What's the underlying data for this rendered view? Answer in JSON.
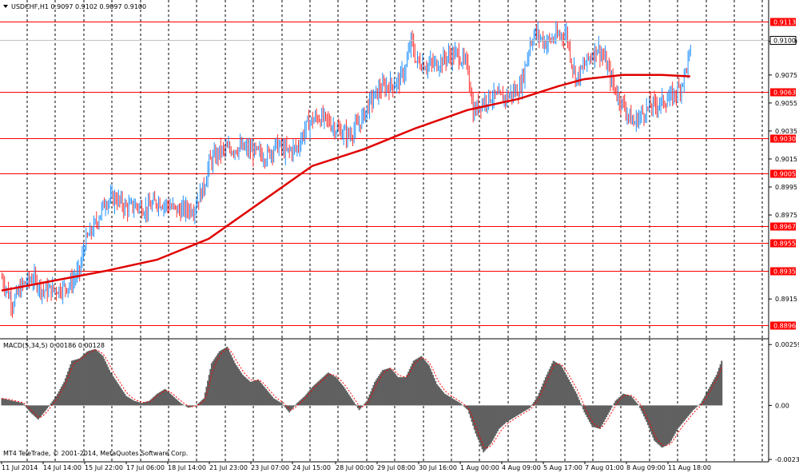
{
  "header": {
    "symbol_line": "USDCHF,H1  0.9097 0.9102 0.9097 0.9100",
    "macd_line": "MACD(5,34,5) 0.00186 0.00128",
    "copyright": "MT4 TeleTrade, © 2001-2014, MetaQuotes Software Corp."
  },
  "chart_data": [
    {
      "type": "candlestick",
      "title": "USDCHF,H1",
      "ohlc_readout": {
        "open": 0.9097,
        "high": 0.9102,
        "low": 0.9097,
        "close": 0.91
      },
      "current_price": 0.91,
      "ylim": [
        0.889,
        0.912
      ],
      "y_ticks": [
        0.9099,
        0.9075,
        0.9055,
        0.9035,
        0.9015,
        0.8995,
        0.8975,
        0.8915
      ],
      "y_tick_labels": [
        "0.9099",
        "0.9075",
        "0.9055",
        "0.9035",
        "0.9015",
        "0.8995",
        "0.8975",
        "0.8915"
      ],
      "levels": [
        0.9113,
        0.9063,
        0.903,
        0.9005,
        0.8967,
        0.8955,
        0.8935,
        0.8896
      ],
      "level_labels": [
        "0.9113",
        "0.9063",
        "0.9030",
        "0.9005",
        "0.8967",
        "0.8955",
        "0.8935",
        "0.8896"
      ],
      "x_tick_labels": [
        "11 Jul 2014",
        "14 Jul 14:00",
        "15 Jul 22:00",
        "17 Jul 06:00",
        "18 Jul 14:00",
        "21 Jul 23:00",
        "23 Jul 07:00",
        "24 Jul 15:00",
        "28 Jul 00:00",
        "29 Jul 08:00",
        "30 Jul 16:00",
        "1 Aug 00:00",
        "4 Aug 09:00",
        "5 Aug 17:00",
        "7 Aug 01:00",
        "8 Aug 09:00",
        "11 Aug 18:00"
      ],
      "close_path": [
        [
          0,
          0.893
        ],
        [
          8,
          0.8912
        ],
        [
          16,
          0.8925
        ],
        [
          24,
          0.893
        ],
        [
          32,
          0.8921
        ],
        [
          44,
          0.8922
        ],
        [
          52,
          0.8925
        ],
        [
          60,
          0.8935
        ],
        [
          64,
          0.8955
        ],
        [
          72,
          0.8968
        ],
        [
          80,
          0.8985
        ],
        [
          88,
          0.8987
        ],
        [
          96,
          0.898
        ],
        [
          104,
          0.8982
        ],
        [
          112,
          0.8979
        ],
        [
          120,
          0.8985
        ],
        [
          128,
          0.8982
        ],
        [
          136,
          0.8978
        ],
        [
          148,
          0.898
        ],
        [
          156,
          0.8995
        ],
        [
          160,
          0.9012
        ],
        [
          168,
          0.902
        ],
        [
          176,
          0.9022
        ],
        [
          184,
          0.9023
        ],
        [
          192,
          0.9021
        ],
        [
          204,
          0.9017
        ],
        [
          212,
          0.9025
        ],
        [
          220,
          0.902
        ],
        [
          228,
          0.9023
        ],
        [
          236,
          0.904
        ],
        [
          244,
          0.9045
        ],
        [
          252,
          0.9042
        ],
        [
          260,
          0.9035
        ],
        [
          268,
          0.9032
        ],
        [
          276,
          0.904
        ],
        [
          284,
          0.9055
        ],
        [
          292,
          0.9065
        ],
        [
          300,
          0.9068
        ],
        [
          306,
          0.907
        ],
        [
          312,
          0.908
        ],
        [
          316,
          0.91
        ],
        [
          320,
          0.9085
        ],
        [
          328,
          0.9082
        ],
        [
          336,
          0.9083
        ],
        [
          344,
          0.9088
        ],
        [
          352,
          0.909
        ],
        [
          360,
          0.908
        ],
        [
          364,
          0.9048
        ],
        [
          370,
          0.9055
        ],
        [
          378,
          0.906
        ],
        [
          386,
          0.9058
        ],
        [
          394,
          0.9062
        ],
        [
          400,
          0.9065
        ],
        [
          404,
          0.908
        ],
        [
          408,
          0.9098
        ],
        [
          412,
          0.9105
        ],
        [
          420,
          0.9098
        ],
        [
          428,
          0.9102
        ],
        [
          436,
          0.9105
        ],
        [
          440,
          0.9085
        ],
        [
          444,
          0.9072
        ],
        [
          452,
          0.9085
        ],
        [
          460,
          0.9095
        ],
        [
          466,
          0.9085
        ],
        [
          472,
          0.9068
        ],
        [
          476,
          0.906
        ],
        [
          482,
          0.905
        ],
        [
          488,
          0.904
        ],
        [
          492,
          0.9045
        ],
        [
          500,
          0.9052
        ],
        [
          508,
          0.9055
        ],
        [
          516,
          0.9058
        ],
        [
          524,
          0.9066
        ],
        [
          528,
          0.9078
        ],
        [
          532,
          0.9092
        ]
      ],
      "moving_average": [
        [
          0,
          0.8921
        ],
        [
          40,
          0.8928
        ],
        [
          80,
          0.8935
        ],
        [
          120,
          0.8943
        ],
        [
          160,
          0.8958
        ],
        [
          200,
          0.8984
        ],
        [
          240,
          0.901
        ],
        [
          280,
          0.9022
        ],
        [
          320,
          0.9037
        ],
        [
          360,
          0.905
        ],
        [
          400,
          0.9058
        ],
        [
          430,
          0.9067
        ],
        [
          450,
          0.9072
        ],
        [
          480,
          0.9075
        ],
        [
          510,
          0.9075
        ],
        [
          532,
          0.9074
        ]
      ]
    },
    {
      "type": "bar",
      "title": "MACD(5,34,5)",
      "values_readout": [
        0.00186,
        0.00128
      ],
      "ylim": [
        -0.0024,
        0.0027
      ],
      "y_tick_labels": [
        "0.00259",
        "0.00",
        "-0.0023"
      ],
      "main": [
        [
          0,
          0.0003
        ],
        [
          8,
          0.0002
        ],
        [
          16,
          0.0001
        ],
        [
          22,
          -0.0003
        ],
        [
          28,
          -0.0006
        ],
        [
          34,
          -0.0002
        ],
        [
          42,
          0.0004
        ],
        [
          48,
          0.001
        ],
        [
          54,
          0.0019
        ],
        [
          60,
          0.002
        ],
        [
          66,
          0.0023
        ],
        [
          72,
          0.0024
        ],
        [
          78,
          0.0021
        ],
        [
          84,
          0.0014
        ],
        [
          90,
          0.0009
        ],
        [
          96,
          0.0004
        ],
        [
          102,
          0.0002
        ],
        [
          108,
          0.0001
        ],
        [
          114,
          0.0002
        ],
        [
          120,
          0.0005
        ],
        [
          126,
          0.0007
        ],
        [
          132,
          0.0004
        ],
        [
          138,
          0.0001
        ],
        [
          144,
          -0.0001
        ],
        [
          150,
          0.0
        ],
        [
          156,
          0.0003
        ],
        [
          162,
          0.0018
        ],
        [
          168,
          0.0023
        ],
        [
          174,
          0.0025
        ],
        [
          180,
          0.0018
        ],
        [
          186,
          0.0013
        ],
        [
          192,
          0.001
        ],
        [
          198,
          0.0011
        ],
        [
          204,
          0.0007
        ],
        [
          210,
          0.0003
        ],
        [
          216,
          0.0001
        ],
        [
          222,
          -0.0003
        ],
        [
          228,
          0.0001
        ],
        [
          234,
          0.0004
        ],
        [
          240,
          0.0008
        ],
        [
          246,
          0.0011
        ],
        [
          252,
          0.0014
        ],
        [
          258,
          0.0012
        ],
        [
          264,
          0.0008
        ],
        [
          270,
          0.0003
        ],
        [
          276,
          -0.0002
        ],
        [
          282,
          0.0002
        ],
        [
          288,
          0.001
        ],
        [
          294,
          0.0015
        ],
        [
          300,
          0.0016
        ],
        [
          306,
          0.0012
        ],
        [
          312,
          0.0012
        ],
        [
          318,
          0.0019
        ],
        [
          324,
          0.0021
        ],
        [
          330,
          0.0017
        ],
        [
          336,
          0.0009
        ],
        [
          342,
          0.0005
        ],
        [
          348,
          0.0003
        ],
        [
          354,
          0.0001
        ],
        [
          360,
          -0.0002
        ],
        [
          366,
          -0.0012
        ],
        [
          372,
          -0.002
        ],
        [
          378,
          -0.0016
        ],
        [
          384,
          -0.001
        ],
        [
          390,
          -0.0007
        ],
        [
          396,
          -0.0005
        ],
        [
          402,
          -0.0003
        ],
        [
          408,
          -0.0001
        ],
        [
          414,
          0.0004
        ],
        [
          420,
          0.0012
        ],
        [
          426,
          0.0019
        ],
        [
          432,
          0.0017
        ],
        [
          438,
          0.0011
        ],
        [
          444,
          0.0005
        ],
        [
          450,
          -0.0003
        ],
        [
          456,
          -0.0009
        ],
        [
          462,
          -0.001
        ],
        [
          468,
          -0.0004
        ],
        [
          474,
          0.0002
        ],
        [
          480,
          0.0005
        ],
        [
          486,
          0.0004
        ],
        [
          492,
          0.0
        ],
        [
          498,
          -0.0007
        ],
        [
          504,
          -0.0015
        ],
        [
          510,
          -0.0018
        ],
        [
          516,
          -0.0016
        ],
        [
          522,
          -0.001
        ],
        [
          528,
          -0.0006
        ],
        [
          534,
          -0.0002
        ],
        [
          540,
          0.0001
        ],
        [
          546,
          0.0007
        ],
        [
          552,
          0.0013
        ],
        [
          556,
          0.0019
        ]
      ],
      "signal_color": "#ff0000",
      "histogram_color": "#606060"
    }
  ],
  "colors": {
    "background": "#ffffff",
    "bull_candle": "#1e90ff",
    "bear_candle": "#ff3030",
    "moving_average": "#e00000",
    "level_line": "#ff0000",
    "grid": "#000000",
    "price_label_bg": "#ffffff"
  },
  "icons": {
    "menu": "triangle-down-icon"
  }
}
